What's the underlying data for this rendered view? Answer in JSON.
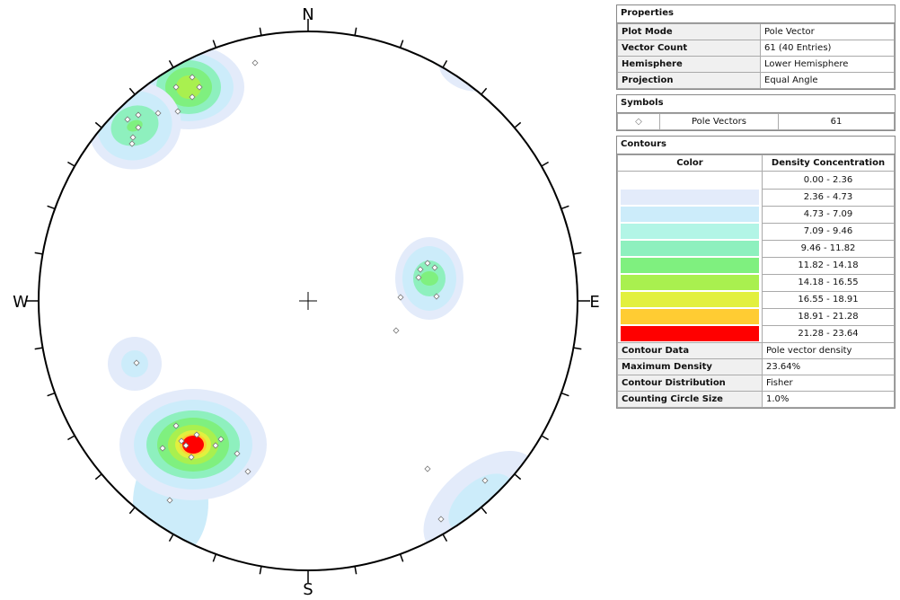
{
  "stereonet": {
    "north": "N",
    "east": "E",
    "south": "S",
    "west": "W"
  },
  "properties": {
    "title": "Properties",
    "rows": [
      [
        "Plot Mode",
        "Pole Vector"
      ],
      [
        "Vector Count",
        "61 (40 Entries)"
      ],
      [
        "Hemisphere",
        "Lower Hemisphere"
      ],
      [
        "Projection",
        "Equal Angle"
      ]
    ]
  },
  "symbols": {
    "title": "Symbols",
    "label": "Pole Vectors",
    "count": "61"
  },
  "contours": {
    "title": "Contours",
    "header": [
      "Color",
      "Density Concentration"
    ],
    "bins": [
      {
        "color": "#ffffff",
        "range": "0.00 - 2.36"
      },
      {
        "color": "#e3ebfa",
        "range": "2.36 - 4.73"
      },
      {
        "color": "#ccecfa",
        "range": "4.73 - 7.09"
      },
      {
        "color": "#b2f5e6",
        "range": "7.09 - 9.46"
      },
      {
        "color": "#8ef0be",
        "range": "9.46 - 11.82"
      },
      {
        "color": "#7ff07f",
        "range": "11.82 - 14.18"
      },
      {
        "color": "#a9f04f",
        "range": "14.18 - 16.55"
      },
      {
        "color": "#e2f03e",
        "range": "16.55 - 18.91"
      },
      {
        "color": "#ffcc33",
        "range": "18.91 - 21.28"
      },
      {
        "color": "#ff0000",
        "range": "21.28 - 23.64"
      }
    ]
  },
  "contour_info": {
    "rows": [
      [
        "Contour Data",
        "Pole vector density"
      ],
      [
        "Maximum Density",
        "23.64%"
      ],
      [
        "Contour Distribution",
        "Fisher"
      ],
      [
        "Counting Circle Size",
        "1.0%"
      ]
    ]
  }
}
